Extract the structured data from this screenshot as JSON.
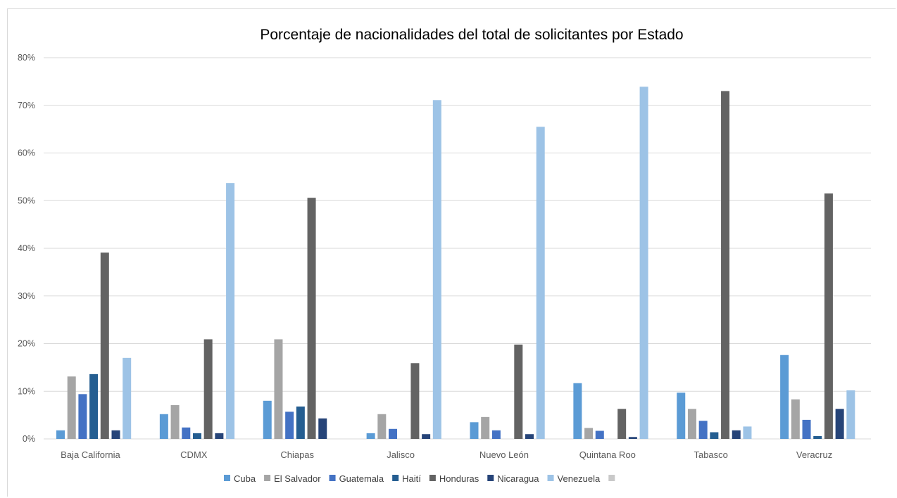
{
  "chart_data": {
    "type": "bar",
    "title": "Porcentaje de nacionalidades del total de solicitantes por Estado",
    "xlabel": "",
    "ylabel": "",
    "ylim": [
      0,
      80
    ],
    "yticks": [
      "0%",
      "10%",
      "20%",
      "30%",
      "40%",
      "50%",
      "60%",
      "70%",
      "80%"
    ],
    "grid": true,
    "legend": "bottom",
    "categories": [
      "Baja California",
      "CDMX",
      "Chiapas",
      "Jalisco",
      "Nuevo León",
      "Quintana Roo",
      "Tabasco",
      "Veracruz"
    ],
    "series": [
      {
        "name": "Cuba",
        "color": "#5b9bd5",
        "values": [
          1.8,
          5.2,
          8.0,
          1.2,
          3.5,
          11.7,
          9.7,
          17.6
        ]
      },
      {
        "name": "El Salvador",
        "color": "#a5a5a5",
        "values": [
          13.1,
          7.1,
          20.9,
          5.2,
          4.6,
          2.3,
          6.3,
          8.3
        ]
      },
      {
        "name": "Guatemala",
        "color": "#4472c4",
        "values": [
          9.4,
          2.4,
          5.7,
          2.1,
          1.8,
          1.7,
          3.8,
          4.0
        ]
      },
      {
        "name": "Haití",
        "color": "#255e91",
        "values": [
          13.6,
          1.2,
          6.8,
          0,
          0,
          0,
          1.4,
          0.6
        ]
      },
      {
        "name": "Honduras",
        "color": "#636363",
        "values": [
          39.1,
          20.9,
          50.6,
          15.9,
          19.8,
          6.3,
          73.0,
          51.5
        ]
      },
      {
        "name": "Nicaragua",
        "color": "#264478",
        "values": [
          1.8,
          1.2,
          4.3,
          1.0,
          1.0,
          0.4,
          1.8,
          6.3
        ]
      },
      {
        "name": "Venezuela",
        "color": "#9dc3e6",
        "values": [
          17.0,
          53.7,
          0,
          71.1,
          65.5,
          73.9,
          2.6,
          10.2
        ]
      },
      {
        "name": "",
        "color": "#c9c9c9",
        "values": [
          0,
          0,
          0,
          0,
          0,
          0,
          0,
          0
        ]
      }
    ]
  }
}
